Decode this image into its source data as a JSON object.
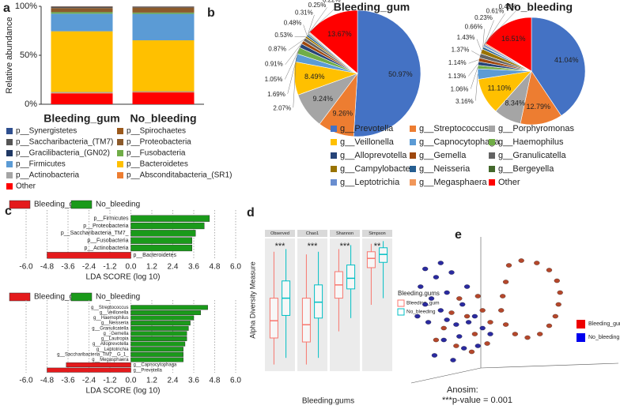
{
  "chart_data": [
    {
      "type": "stacked-bar",
      "label": "a",
      "ylabel": "Relative abundance",
      "categories": [
        "Bleeding_gum",
        "No_bleeding"
      ],
      "ylim": [
        0,
        100
      ],
      "yticks": [
        {
          "value": 0,
          "label": "0%"
        },
        {
          "value": 50,
          "label": "50%"
        },
        {
          "value": 100,
          "label": "100%"
        }
      ],
      "series": [
        {
          "name": "p__Synergistetes",
          "color": "#2f4f8f",
          "values": [
            0.3,
            0.2
          ]
        },
        {
          "name": "p__Spirochaetes",
          "color": "#9c5a1c",
          "values": [
            0.5,
            0.3
          ]
        },
        {
          "name": "p__Saccharibacteria_(TM7)",
          "color": "#555555",
          "values": [
            1,
            0.8
          ]
        },
        {
          "name": "p__Proteobacteria",
          "color": "#8c5a2b",
          "values": [
            4,
            5
          ]
        },
        {
          "name": "p__Gracilibacteria_(GN02)",
          "color": "#1f3864",
          "values": [
            0.2,
            0.2
          ]
        },
        {
          "name": "p__Fusobacteria",
          "color": "#70ad47",
          "values": [
            1.5,
            1.2
          ]
        },
        {
          "name": "p__Firmicutes",
          "color": "#5b9bd5",
          "values": [
            18,
            27
          ]
        },
        {
          "name": "p__Bacteroidetes",
          "color": "#ffc000",
          "values": [
            62,
            52
          ]
        },
        {
          "name": "p__Actinobacteria",
          "color": "#a5a5a5",
          "values": [
            1,
            0.8
          ]
        },
        {
          "name": "p__Absconditabacteria_(SR1)",
          "color": "#ed7d31",
          "values": [
            0.5,
            0.5
          ]
        },
        {
          "name": "Other",
          "color": "#ff0000",
          "values": [
            11,
            12
          ]
        }
      ]
    },
    {
      "type": "pie",
      "label": "b",
      "categories": [
        "g__Prevotella",
        "g__Streptococcus",
        "g__Porphyromonas",
        "g__Veillonella",
        "g__Capnocytophaga",
        "g__Haemophilus",
        "g__Alloprevotella",
        "g__Gemella",
        "g__Granulicatella",
        "g__Campylobacter",
        "g__Neisseria",
        "g__Bergeyella",
        "g__Leptotrichia",
        "g__Megasphaera",
        "Other"
      ],
      "colors": [
        "#4472c4",
        "#ed7d31",
        "#a5a5a5",
        "#ffc000",
        "#5b9bd5",
        "#70ad47",
        "#264478",
        "#9e480e",
        "#636363",
        "#997300",
        "#255e91",
        "#43682b",
        "#698ed0",
        "#f1975a",
        "#ff0000"
      ],
      "series": [
        {
          "name": "Bleeding_gum",
          "values": [
            50.97,
            9.26,
            9.24,
            8.49,
            2.07,
            1.69,
            1.05,
            0.91,
            0.87,
            0.53,
            0.48,
            0.31,
            0.25,
            0.22,
            13.67
          ],
          "value_labels": [
            "50.97%",
            "9.26%",
            "9.24%",
            "8.49%",
            "2.07%",
            "1.69%",
            "1.05%",
            "0.91%",
            "0.87%",
            "0.53%",
            "0.48%",
            "0.31%",
            "0.25%",
            "0.22%",
            "13.67%"
          ]
        },
        {
          "name": "No_bleeding",
          "values": [
            41.04,
            12.79,
            8.34,
            11.1,
            3.16,
            1.06,
            1.13,
            1.14,
            1.37,
            1.43,
            0.66,
            0.23,
            0.61,
            0.43,
            16.51
          ],
          "value_labels": [
            "41.04%",
            "12.79%",
            "8.34%",
            "11.10%",
            "3.16%",
            "1.06%",
            "1.13%",
            "1.14%",
            "1.37%",
            "1.43%",
            "0.66%",
            "0.23%",
            "0.61%",
            "0.43%",
            "16.51%"
          ]
        }
      ]
    },
    {
      "type": "lda-bar",
      "label": "c",
      "groups": [
        {
          "name": "Bleeding_gum",
          "color": "#e41a1c"
        },
        {
          "name": "No_bleeding",
          "color": "#1a9a1a"
        }
      ],
      "categories": [
        "p__Firmicutes",
        "p__Proteobacteria",
        "p__Saccharibacteria_TM7_",
        "p__Fusobacteria",
        "p__Actinobacteria",
        "p__Bacteroidetes"
      ],
      "values": [
        4.5,
        4.2,
        3.7,
        3.5,
        3.5,
        -4.8
      ],
      "xlim": [
        -6,
        6
      ],
      "xticks": [
        {
          "value": -6,
          "label": "-6.0"
        },
        -4.8,
        -3.6,
        -2.4,
        -1.2,
        {
          "value": 0,
          "label": "0.0"
        },
        1.2,
        2.4,
        3.6,
        4.8,
        {
          "value": 6,
          "label": "6.0"
        }
      ],
      "xlabel": "LDA SCORE (log 10)"
    },
    {
      "type": "lda-bar",
      "groups": [
        {
          "name": "Bleeding_gum",
          "color": "#e41a1c"
        },
        {
          "name": "No_bleeding",
          "color": "#1a9a1a"
        }
      ],
      "categories": [
        "g__Streptococcus",
        "g__Veillonella",
        "g__Haemophilus",
        "g__Neisseria",
        "g__Granulicatella",
        "g__Gemella",
        "g__Lautropia",
        "g__Alloprevotella",
        "g__Leptotrichia",
        "g__Saccharibacteria_TM7__G_1_",
        "g__Megasphaera",
        "g__Capnocytophaga",
        "g__Prevotella"
      ],
      "values": [
        4.4,
        4.0,
        3.6,
        3.4,
        3.3,
        3.2,
        3.2,
        3.1,
        3.0,
        3.0,
        3.0,
        -3.7,
        -4.8
      ],
      "xlim": [
        -6,
        6
      ],
      "xticks": [
        {
          "value": -6,
          "label": "-6.0"
        },
        -4.8,
        -3.6,
        -2.4,
        -1.2,
        {
          "value": 0,
          "label": "0.0"
        },
        1.2,
        2.4,
        3.6,
        4.8,
        {
          "value": 6,
          "label": "6.0"
        }
      ],
      "xlabel": "LDA SCORE (log 10)"
    },
    {
      "type": "box",
      "label": "d",
      "ylabel": "Alpha Diversity Measure",
      "xlabel": "Bleeding.gums",
      "legend_title": "Bleeding.gums",
      "facets": [
        "Observed",
        "Chao1",
        "Shannon",
        "Simpson"
      ],
      "annotations": [
        "***",
        "***",
        "***",
        "**"
      ],
      "ylim": [
        0,
        1
      ],
      "series": [
        {
          "name": "Bleeding_gum",
          "color": "#f8766d",
          "boxes": [
            [
              0.05,
              0.25,
              0.38,
              0.55,
              0.9
            ],
            [
              0.05,
              0.22,
              0.35,
              0.55,
              0.88
            ],
            [
              0.3,
              0.55,
              0.65,
              0.75,
              0.92
            ],
            [
              0.5,
              0.78,
              0.85,
              0.9,
              0.96
            ]
          ]
        },
        {
          "name": "No_bleeding",
          "color": "#00bfc4",
          "boxes": [
            [
              0.1,
              0.42,
              0.55,
              0.68,
              0.92
            ],
            [
              0.1,
              0.4,
              0.52,
              0.65,
              0.9
            ],
            [
              0.4,
              0.62,
              0.7,
              0.8,
              0.95
            ],
            [
              0.55,
              0.82,
              0.88,
              0.93,
              0.98
            ]
          ]
        }
      ]
    },
    {
      "type": "scatter",
      "label": "e",
      "xlim": [
        0,
        100
      ],
      "ylim": [
        0,
        100
      ],
      "annotations": [
        "Anosim:",
        "***p-value = 0.001"
      ],
      "series": [
        {
          "name": "Bleeding_gum",
          "color": "#b5472b",
          "x": [
            62,
            70,
            80,
            88,
            93,
            95,
            94,
            92,
            88,
            82,
            74,
            66,
            60,
            57,
            58,
            60,
            30,
            35,
            40,
            28,
            45,
            50,
            20,
            38,
            48,
            25,
            15,
            42
          ],
          "y": [
            88,
            92,
            90,
            84,
            75,
            65,
            55,
            45,
            37,
            30,
            27,
            30,
            38,
            50,
            62,
            74,
            60,
            45,
            30,
            20,
            50,
            40,
            35,
            15,
            22,
            48,
            25,
            62
          ]
        },
        {
          "name": "No_bleeding",
          "color": "#2a2aa0",
          "x": [
            5,
            8,
            12,
            15,
            18,
            22,
            25,
            10,
            28,
            32,
            20,
            35,
            40,
            14,
            30,
            45,
            8,
            26,
            42,
            36,
            18,
            50,
            3,
            22,
            33
          ],
          "y": [
            70,
            85,
            60,
            78,
            50,
            65,
            82,
            40,
            38,
            55,
            25,
            70,
            45,
            12,
            28,
            35,
            55,
            8,
            20,
            40,
            90,
            30,
            45,
            42,
            18
          ]
        }
      ]
    }
  ]
}
